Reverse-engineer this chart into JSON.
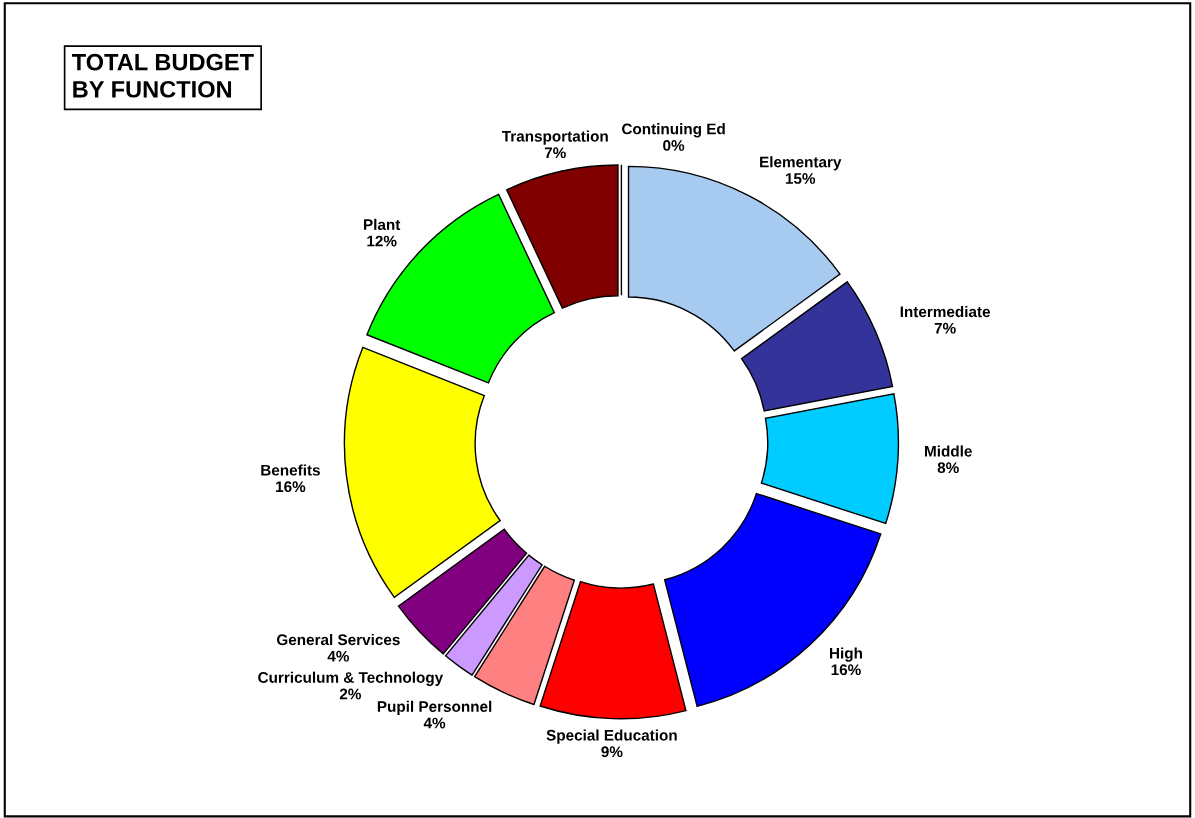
{
  "chart_data": {
    "type": "donut",
    "title": "TOTAL BUDGET\nBY FUNCTION",
    "categories": [
      "Elementary",
      "Intermediate",
      "Middle",
      "High",
      "Special Education",
      "Pupil Personnel",
      "Curriculum & Technology",
      "General Services",
      "Benefits",
      "Plant",
      "Transportation",
      "Continuing Ed"
    ],
    "values": [
      15,
      7,
      8,
      16,
      9,
      4,
      2,
      4,
      16,
      12,
      7,
      0
    ],
    "value_labels": [
      "15%",
      "7%",
      "8%",
      "16%",
      "9%",
      "4%",
      "2%",
      "4%",
      "16%",
      "12%",
      "7%",
      "0%"
    ],
    "colors": [
      "#a6caf0",
      "#333399",
      "#00ccff",
      "#0000ff",
      "#ff0000",
      "#ff8080",
      "#cc99ff",
      "#800080",
      "#ffff00",
      "#00ff00",
      "#800000",
      "#000000"
    ],
    "legend": false
  }
}
